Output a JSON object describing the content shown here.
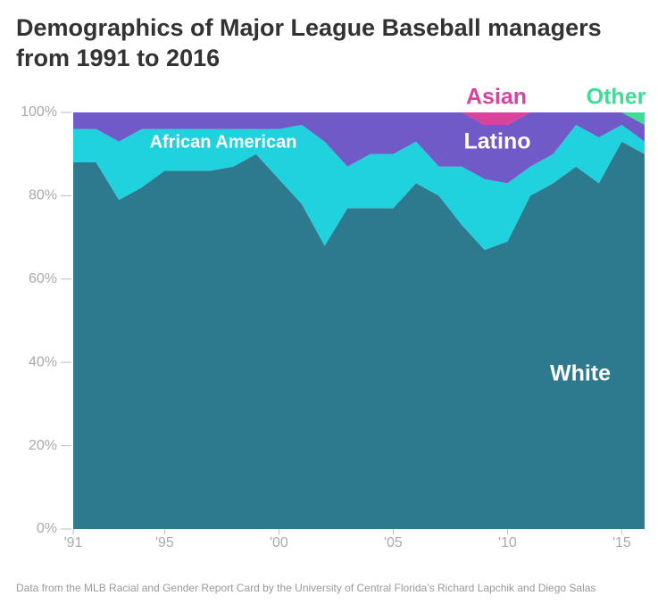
{
  "chart_data": {
    "type": "stacked_area",
    "title": "Demographics of Major League Baseball managers from 1991 to 2016",
    "source": "Data from the MLB Racial and Gender Report Card by the University of Central Florida’s Richard Lapchik and Diego Salas",
    "x": [
      1991,
      1992,
      1993,
      1994,
      1995,
      1996,
      1997,
      1998,
      1999,
      2000,
      2001,
      2002,
      2003,
      2004,
      2005,
      2006,
      2007,
      2008,
      2009,
      2010,
      2011,
      2012,
      2013,
      2014,
      2015,
      2016
    ],
    "series": [
      {
        "name": "White",
        "color": "#2d7a8e",
        "values": [
          88,
          88,
          79,
          82,
          86,
          86,
          86,
          87,
          90,
          84,
          78,
          68,
          77,
          77,
          77,
          83,
          80,
          73,
          67,
          69,
          80,
          83,
          87,
          83,
          93,
          90
        ]
      },
      {
        "name": "African American",
        "color": "#1fd2dd",
        "values": [
          8,
          8,
          14,
          14,
          10,
          10,
          10,
          9,
          6,
          12,
          19,
          25,
          10,
          13,
          13,
          10,
          7,
          14,
          17,
          14,
          7,
          7,
          10,
          11,
          4,
          3
        ]
      },
      {
        "name": "Latino",
        "color": "#6f5ac8",
        "values": [
          4,
          4,
          7,
          4,
          4,
          4,
          4,
          4,
          4,
          4,
          3,
          7,
          13,
          10,
          10,
          7,
          13,
          13,
          13,
          14,
          13,
          10,
          3,
          6,
          3,
          4
        ]
      },
      {
        "name": "Asian",
        "color": "#d8449d",
        "values": [
          0,
          0,
          0,
          0,
          0,
          0,
          0,
          0,
          0,
          0,
          0,
          0,
          0,
          0,
          0,
          0,
          0,
          0,
          3,
          3,
          0,
          0,
          0,
          0,
          0,
          0
        ]
      },
      {
        "name": "Other",
        "color": "#3fdc98",
        "values": [
          0,
          0,
          0,
          0,
          0,
          0,
          0,
          0,
          0,
          0,
          0,
          0,
          0,
          0,
          0,
          0,
          0,
          0,
          0,
          0,
          0,
          0,
          0,
          0,
          0,
          3
        ]
      }
    ],
    "xlim": [
      1991,
      2016
    ],
    "xticks": [
      {
        "value": 1991,
        "label": "'91"
      },
      {
        "value": 1995,
        "label": "'95"
      },
      {
        "value": 2000,
        "label": "'00"
      },
      {
        "value": 2005,
        "label": "'05"
      },
      {
        "value": 2010,
        "label": "'10"
      },
      {
        "value": 2015,
        "label": "'15"
      }
    ],
    "ylim": [
      0,
      100
    ],
    "yticks": [
      {
        "value": 0,
        "label": "0%"
      },
      {
        "value": 20,
        "label": "20%"
      },
      {
        "value": 40,
        "label": "40%"
      },
      {
        "value": 60,
        "label": "60%"
      },
      {
        "value": 80,
        "label": "80%"
      },
      {
        "value": 100,
        "label": "100%"
      }
    ]
  }
}
